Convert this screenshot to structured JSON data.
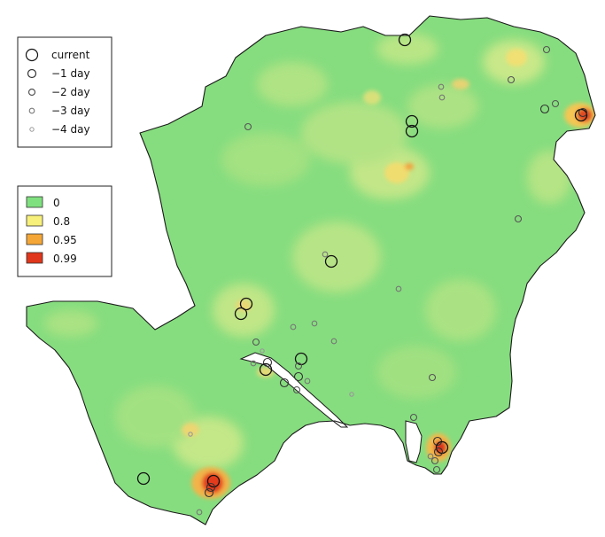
{
  "legend_time": {
    "items": [
      {
        "label": "current"
      },
      {
        "label": "−1 day"
      },
      {
        "label": "−2 day"
      },
      {
        "label": "−3 day"
      },
      {
        "label": "−4 day"
      }
    ]
  },
  "legend_prob": {
    "items": [
      {
        "label": "0",
        "color": "#7fe07f"
      },
      {
        "label": "0.8",
        "color": "#f7f07a"
      },
      {
        "label": "0.95",
        "color": "#f4a637"
      },
      {
        "label": "0.99",
        "color": "#e0361b"
      }
    ]
  },
  "colors": {
    "base_green": "#86dd7f",
    "coast_line": "#1a1a1a",
    "marker_current": "#111111",
    "marker_day1": "#333333",
    "marker_day2": "#555555",
    "marker_day3": "#777777",
    "marker_day4": "#999999"
  }
}
